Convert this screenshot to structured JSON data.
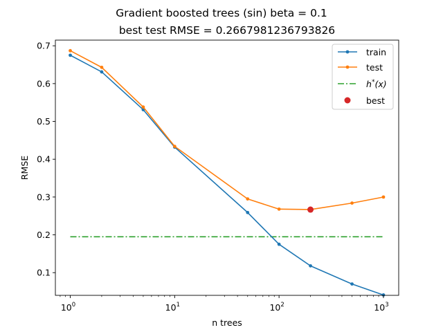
{
  "chart_data": {
    "type": "line",
    "title": "Gradient boosted trees (sin) beta = 0.1",
    "subtitle": "best test RMSE = 0.2667981236793826",
    "xlabel": "n trees",
    "ylabel": "RMSE",
    "xscale": "log",
    "xlim": [
      0.72,
      1400
    ],
    "ylim": [
      0.04,
      0.715
    ],
    "x_ticks": [
      {
        "value": 1,
        "label_base": "10",
        "label_exp": "0"
      },
      {
        "value": 10,
        "label_base": "10",
        "label_exp": "1"
      },
      {
        "value": 100,
        "label_base": "10",
        "label_exp": "2"
      },
      {
        "value": 1000,
        "label_base": "10",
        "label_exp": "3"
      }
    ],
    "y_ticks": [
      0.1,
      0.2,
      0.3,
      0.4,
      0.5,
      0.6,
      0.7
    ],
    "y_tick_labels": [
      "0.1",
      "0.2",
      "0.3",
      "0.4",
      "0.5",
      "0.6",
      "0.7"
    ],
    "x": [
      1,
      2,
      5,
      10,
      50,
      100,
      200,
      500,
      1000
    ],
    "series": [
      {
        "name": "train",
        "color": "#1f77b4",
        "marker": "dot",
        "values": [
          0.675,
          0.631,
          0.531,
          0.432,
          0.259,
          0.175,
          0.118,
          0.07,
          0.041
        ]
      },
      {
        "name": "test",
        "color": "#ff7f0e",
        "marker": "dot",
        "values": [
          0.687,
          0.643,
          0.538,
          0.434,
          0.295,
          0.268,
          0.267,
          0.284,
          0.3
        ]
      }
    ],
    "hline": {
      "name": "h*(x)",
      "label_base": "h",
      "label_sup": "*",
      "label_tail": "(x)",
      "color": "#2ca02c",
      "value": 0.195,
      "style": "dash-dot",
      "x_range": [
        1,
        1000
      ]
    },
    "best_point": {
      "name": "best",
      "color": "#d62728",
      "x": 200,
      "y": 0.2668
    },
    "legend": {
      "position": "top-right"
    },
    "grid": false
  }
}
